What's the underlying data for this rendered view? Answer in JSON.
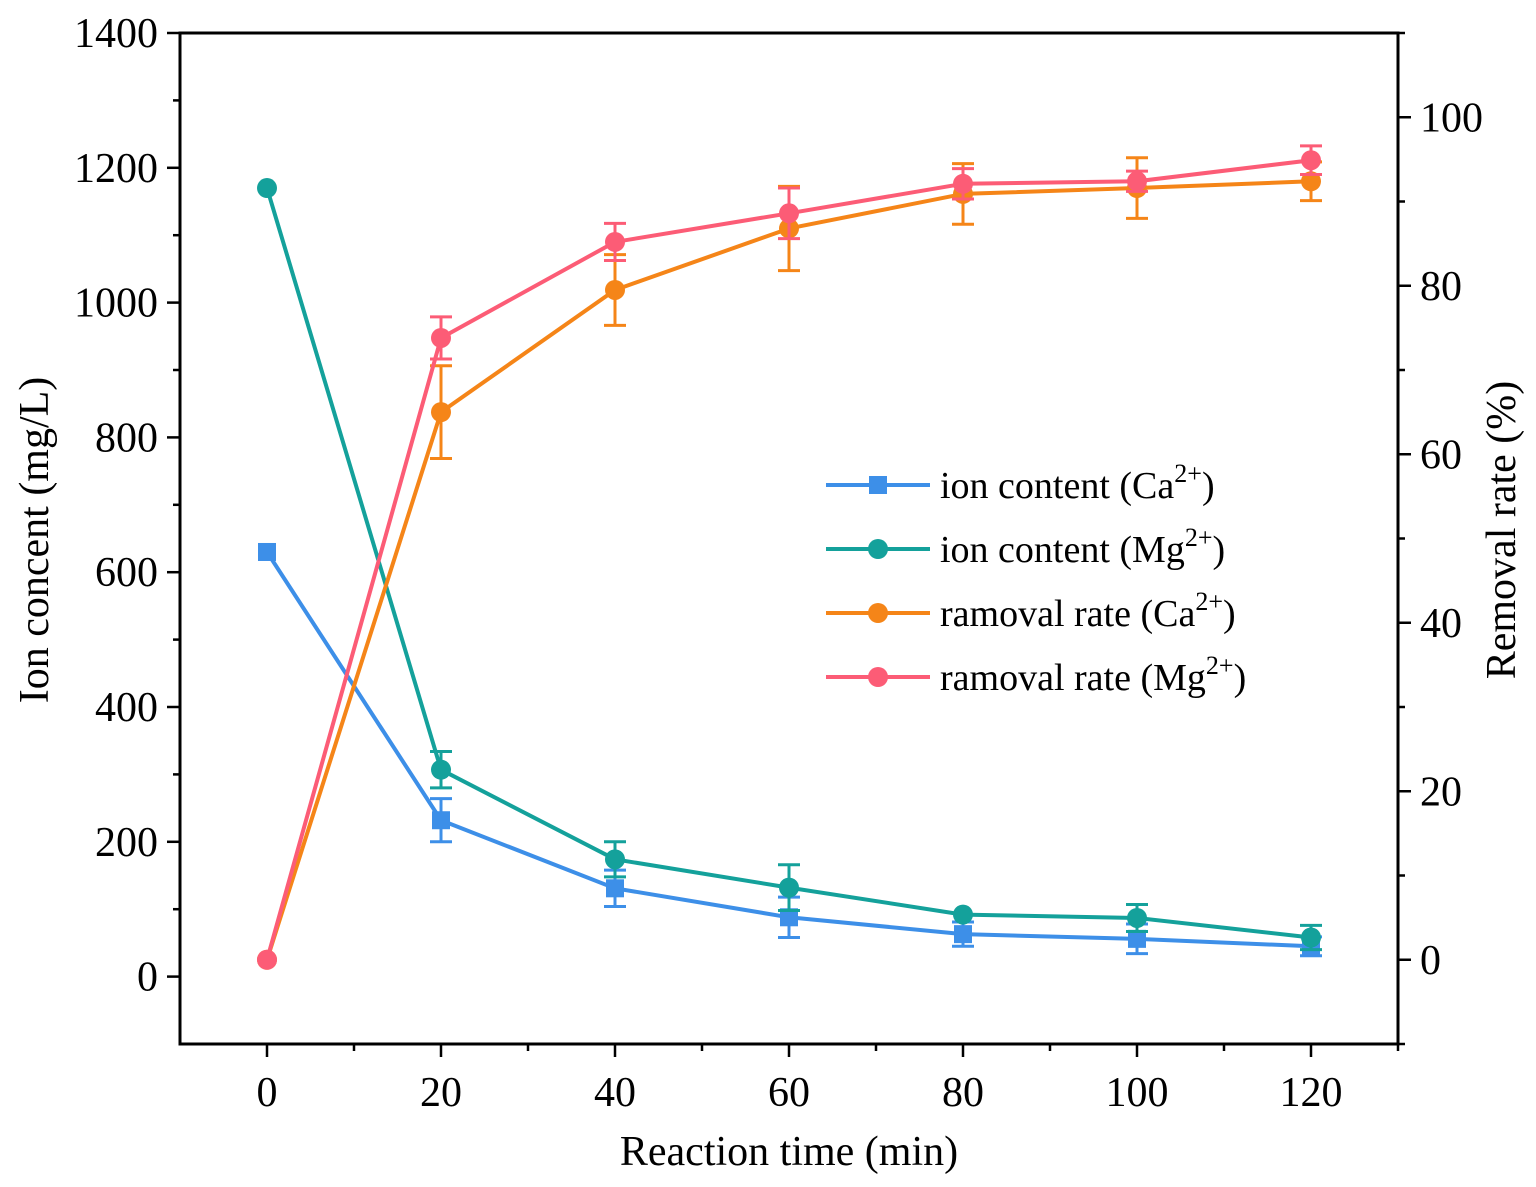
{
  "chart_data": {
    "type": "line",
    "title": "",
    "x": [
      0,
      20,
      40,
      60,
      80,
      100,
      120
    ],
    "xlabel": "Reaction time (min)",
    "xlim": [
      -10,
      130
    ],
    "xticks": [
      "0",
      "20",
      "40",
      "60",
      "80",
      "100",
      "120"
    ],
    "ylabel_left": "Ion concent (mg/L)",
    "ylim_left": [
      -100,
      1400
    ],
    "yticks_left": [
      "0",
      "200",
      "400",
      "600",
      "800",
      "1000",
      "1200",
      "1400"
    ],
    "ylabel_right": "Removal rate (%)",
    "ylim_right": [
      -10,
      110
    ],
    "yticks_right": [
      "0",
      "20",
      "40",
      "60",
      "80",
      "100"
    ],
    "grid": false,
    "legend_position": "center-right",
    "series": [
      {
        "name": "ion content (Ca",
        "sup": "2+",
        "close": ")",
        "axis": "left",
        "marker": "square",
        "color": "#3d8fe8",
        "values": [
          630,
          232,
          131,
          88,
          63,
          56,
          45
        ],
        "errors": [
          0,
          32,
          27,
          30,
          18,
          22,
          14
        ]
      },
      {
        "name": "ion content (Mg",
        "sup": "2+",
        "close": ")",
        "axis": "left",
        "marker": "circle",
        "color": "#14a19b",
        "values": [
          1170,
          307,
          174,
          132,
          92,
          87,
          58
        ],
        "errors": [
          0,
          27,
          26,
          34,
          0,
          20,
          18
        ]
      },
      {
        "name": "ramoval rate (Ca",
        "sup": "2+",
        "close": ")",
        "axis": "right",
        "marker": "circle",
        "color": "#f58518",
        "values": [
          0,
          65,
          79.5,
          86.8,
          90.9,
          91.6,
          92.4
        ],
        "errors": [
          0,
          5.5,
          4.2,
          5.0,
          3.6,
          3.6,
          2.3
        ]
      },
      {
        "name": "ramoval rate (Mg",
        "sup": "2+",
        "close": ")",
        "axis": "right",
        "marker": "circle",
        "color": "#fc5c76",
        "values": [
          0,
          73.8,
          85.2,
          88.6,
          92.1,
          92.4,
          94.9
        ],
        "errors": [
          0,
          2.5,
          2.2,
          3.0,
          1.8,
          1.2,
          1.7
        ]
      }
    ]
  }
}
